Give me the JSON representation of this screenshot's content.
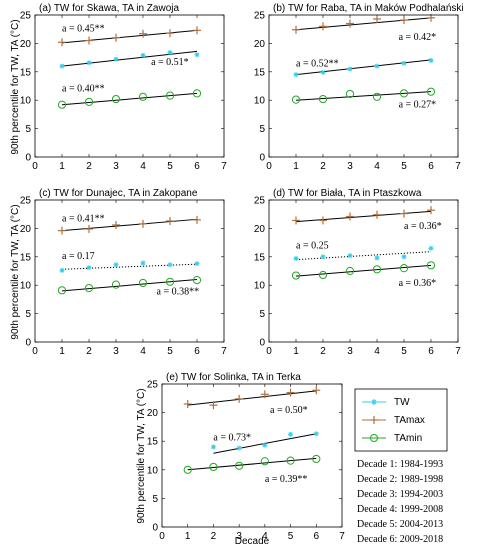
{
  "ylabel": "90th percentile for TW, TA (°C)",
  "xlabel": "Decade",
  "legend": {
    "entries": [
      {
        "label": "TW",
        "color": "#33ccee",
        "marker": "star"
      },
      {
        "label": "TAmax",
        "color": "#b07040",
        "marker": "plus"
      },
      {
        "label": "TAmin",
        "color": "#22aa22",
        "marker": "circle"
      }
    ]
  },
  "decades": [
    "Decade 1: 1984-1993",
    "Decade 2: 1989-1998",
    "Decade 3: 1994-2003",
    "Decade 4: 1999-2008",
    "Decade 5: 2004-2013",
    "Decade 6: 2009-2018"
  ],
  "colors": {
    "tw": "#33ccee",
    "tamax": "#b07040",
    "tamin": "#22aa22",
    "trend": "#000000"
  },
  "chart_data": [
    {
      "type": "line",
      "title": "(a) TW for Skawa, TA in Zawoja",
      "xlim": [
        0,
        7
      ],
      "ylim": [
        0,
        25
      ],
      "xticks": [
        0,
        1,
        2,
        3,
        4,
        5,
        6,
        7
      ],
      "yticks": [
        0,
        5,
        10,
        15,
        20,
        25
      ],
      "x": [
        1,
        2,
        3,
        4,
        5,
        6
      ],
      "series": [
        {
          "name": "TAmax",
          "values": [
            20.2,
            20.5,
            21.0,
            21.7,
            21.8,
            22.3
          ],
          "trend": [
            20.1,
            22.3
          ],
          "trend_style": "solid"
        },
        {
          "name": "TW",
          "values": [
            16.0,
            16.6,
            17.2,
            17.9,
            18.4,
            18.0
          ],
          "trend": [
            16.0,
            18.6
          ],
          "trend_style": "solid"
        },
        {
          "name": "TAmin",
          "values": [
            9.2,
            9.7,
            10.2,
            10.6,
            10.8,
            11.2
          ],
          "trend": [
            9.2,
            11.2
          ],
          "trend_style": "solid"
        }
      ],
      "annotations": [
        {
          "text": "a = 0.45**",
          "x": 1.0,
          "y": 22.1
        },
        {
          "text": "a = 0.51*",
          "x": 4.3,
          "y": 16.2
        },
        {
          "text": "a = 0.40**",
          "x": 1.0,
          "y": 11.5
        }
      ]
    },
    {
      "type": "line",
      "title": "(b) TW for Raba, TA in Maków Podhalański",
      "xlim": [
        0,
        7
      ],
      "ylim": [
        0,
        25
      ],
      "xticks": [
        0,
        1,
        2,
        3,
        4,
        5,
        6,
        7
      ],
      "yticks": [
        0,
        5,
        10,
        15,
        20,
        25
      ],
      "x": [
        1,
        2,
        3,
        4,
        5,
        6
      ],
      "series": [
        {
          "name": "TAmax",
          "values": [
            22.4,
            23.0,
            23.5,
            24.3,
            24.1,
            24.5
          ],
          "trend": [
            22.4,
            24.5
          ],
          "trend_style": "solid"
        },
        {
          "name": "TW",
          "values": [
            14.5,
            14.9,
            15.5,
            16.0,
            16.5,
            17.0
          ],
          "trend": [
            14.5,
            17.1
          ],
          "trend_style": "solid"
        },
        {
          "name": "TAmin",
          "values": [
            10.1,
            10.2,
            11.1,
            10.6,
            11.2,
            11.5
          ],
          "trend": [
            10.0,
            11.5
          ],
          "trend_style": "solid"
        }
      ],
      "annotations": [
        {
          "text": "a = 0.42*",
          "x": 4.8,
          "y": 20.6
        },
        {
          "text": "a = 0.52**",
          "x": 1.0,
          "y": 15.9
        },
        {
          "text": "a = 0.27*",
          "x": 4.8,
          "y": 8.7
        }
      ]
    },
    {
      "type": "line",
      "title": "(c) TW for Dunajec, TA in Zakopane",
      "xlim": [
        0,
        7
      ],
      "ylim": [
        0,
        25
      ],
      "xticks": [
        0,
        1,
        2,
        3,
        4,
        5,
        6,
        7
      ],
      "yticks": [
        0,
        5,
        10,
        15,
        20,
        25
      ],
      "x": [
        1,
        2,
        3,
        4,
        5,
        6
      ],
      "series": [
        {
          "name": "TAmax",
          "values": [
            19.6,
            19.9,
            20.6,
            20.8,
            21.3,
            21.5
          ],
          "trend": [
            19.6,
            21.6
          ],
          "trend_style": "solid"
        },
        {
          "name": "TW",
          "values": [
            12.6,
            13.1,
            13.6,
            13.9,
            13.6,
            13.8
          ],
          "trend": [
            12.8,
            13.7
          ],
          "trend_style": "dotted"
        },
        {
          "name": "TAmin",
          "values": [
            9.1,
            9.5,
            10.1,
            10.4,
            10.6,
            10.9
          ],
          "trend": [
            9.0,
            11.0
          ],
          "trend_style": "solid"
        }
      ],
      "annotations": [
        {
          "text": "a = 0.41**",
          "x": 1.0,
          "y": 21.2
        },
        {
          "text": "a = 0.17",
          "x": 1.0,
          "y": 14.6
        },
        {
          "text": "a = 0.38**",
          "x": 4.5,
          "y": 8.4
        }
      ]
    },
    {
      "type": "line",
      "title": "(d) TW for Biała, TA in Ptaszkowa",
      "xlim": [
        0,
        7
      ],
      "ylim": [
        0,
        25
      ],
      "xticks": [
        0,
        1,
        2,
        3,
        4,
        5,
        6,
        7
      ],
      "yticks": [
        0,
        5,
        10,
        15,
        20,
        25
      ],
      "x": [
        1,
        2,
        3,
        4,
        5,
        6
      ],
      "series": [
        {
          "name": "TAmax",
          "values": [
            21.4,
            21.4,
            22.1,
            22.4,
            22.6,
            23.2
          ],
          "trend": [
            21.2,
            23.0
          ],
          "trend_style": "solid"
        },
        {
          "name": "TW",
          "values": [
            14.7,
            15.0,
            15.2,
            14.8,
            15.0,
            16.5
          ],
          "trend": [
            14.5,
            15.9
          ],
          "trend_style": "dotted"
        },
        {
          "name": "TAmin",
          "values": [
            11.7,
            11.8,
            12.5,
            12.8,
            13.0,
            13.5
          ],
          "trend": [
            11.6,
            13.5
          ],
          "trend_style": "solid"
        }
      ],
      "annotations": [
        {
          "text": "a = 0.36*",
          "x": 5.0,
          "y": 19.9
        },
        {
          "text": "a = 0.25",
          "x": 1.0,
          "y": 16.5
        },
        {
          "text": "a = 0.36*",
          "x": 4.8,
          "y": 9.9
        }
      ]
    },
    {
      "type": "line",
      "title": "(e) TW for Solinka, TA in Terka",
      "xlim": [
        0,
        7
      ],
      "ylim": [
        0,
        25
      ],
      "xticks": [
        0,
        1,
        2,
        3,
        4,
        5,
        6,
        7
      ],
      "yticks": [
        0,
        5,
        10,
        15,
        20,
        25
      ],
      "x": [
        1,
        2,
        3,
        4,
        5,
        6
      ],
      "series": [
        {
          "name": "TAmax",
          "values": [
            21.5,
            21.3,
            22.4,
            23.2,
            23.5,
            23.9
          ],
          "trend": [
            21.3,
            23.8
          ],
          "trend_style": "solid"
        },
        {
          "name": "TW",
          "values": [
            null,
            14.0,
            13.8,
            14.3,
            16.2,
            16.3
          ],
          "trend": [
            12.9,
            16.3
          ],
          "trend_style": "solid",
          "trend_start": 2
        },
        {
          "name": "TAmin",
          "values": [
            10.0,
            10.5,
            10.7,
            11.5,
            11.6,
            11.9
          ],
          "trend": [
            10.0,
            12.0
          ],
          "trend_style": "solid"
        }
      ],
      "annotations": [
        {
          "text": "a = 0.50*",
          "x": 4.2,
          "y": 19.9
        },
        {
          "text": "a = 0.73*",
          "x": 2.0,
          "y": 15.1
        },
        {
          "text": "a = 0.39**",
          "x": 4.0,
          "y": 7.9
        }
      ]
    }
  ]
}
